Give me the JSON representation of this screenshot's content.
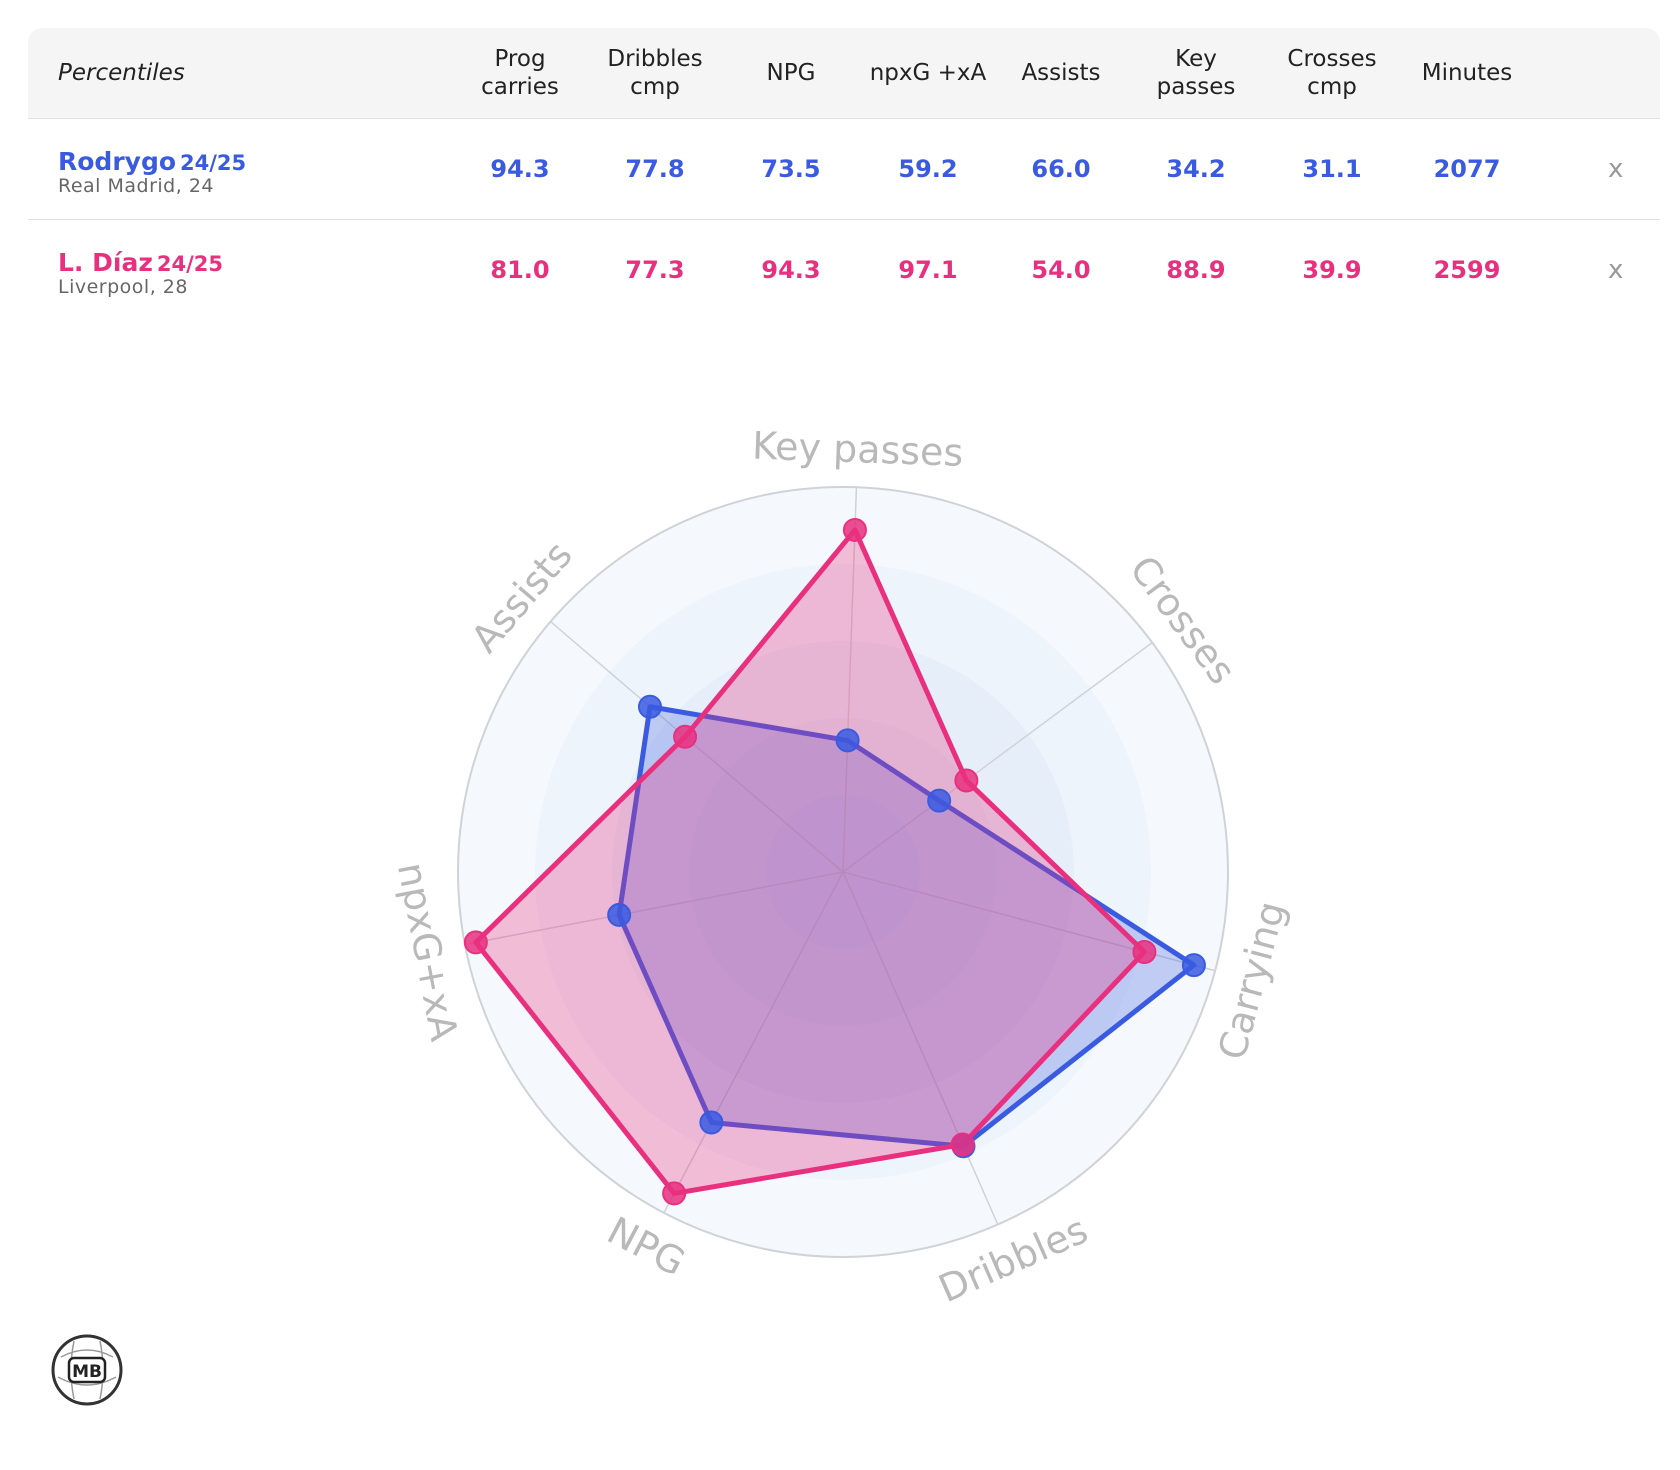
{
  "table": {
    "header_label": "Percentiles",
    "columns": [
      "Prog\ncarries",
      "Dribbles\ncmp",
      "NPG",
      "npxG +xA",
      "Assists",
      "Key\npasses",
      "Crosses\ncmp",
      "Minutes"
    ],
    "close_symbol": "x",
    "players": [
      {
        "name": "Rodrygo",
        "season": "24/25",
        "club": "Real Madrid, 24",
        "color": "#3a5be0",
        "values": [
          "94.3",
          "77.8",
          "73.5",
          "59.2",
          "66.0",
          "34.2",
          "31.1",
          "2077"
        ]
      },
      {
        "name": "L. Díaz",
        "season": "24/25",
        "club": "Liverpool, 28",
        "color": "#e8307f",
        "values": [
          "81.0",
          "77.3",
          "94.3",
          "97.1",
          "54.0",
          "88.9",
          "39.9",
          "2599"
        ]
      }
    ]
  },
  "chart_data": {
    "type": "radar",
    "axes": [
      "Key passes",
      "Crosses",
      "Carrying",
      "Dribbles",
      "NPG",
      "npxG+xA",
      "Assists"
    ],
    "range": [
      0,
      100
    ],
    "series": [
      {
        "name": "Rodrygo",
        "color": "#3a5be0",
        "values": [
          34.2,
          31.1,
          94.3,
          77.8,
          73.5,
          59.2,
          66.0
        ]
      },
      {
        "name": "L. Díaz",
        "color": "#e8307f",
        "values": [
          88.9,
          39.9,
          81.0,
          77.3,
          94.3,
          97.1,
          54.0
        ]
      }
    ]
  },
  "logo": {
    "text": "MB"
  }
}
